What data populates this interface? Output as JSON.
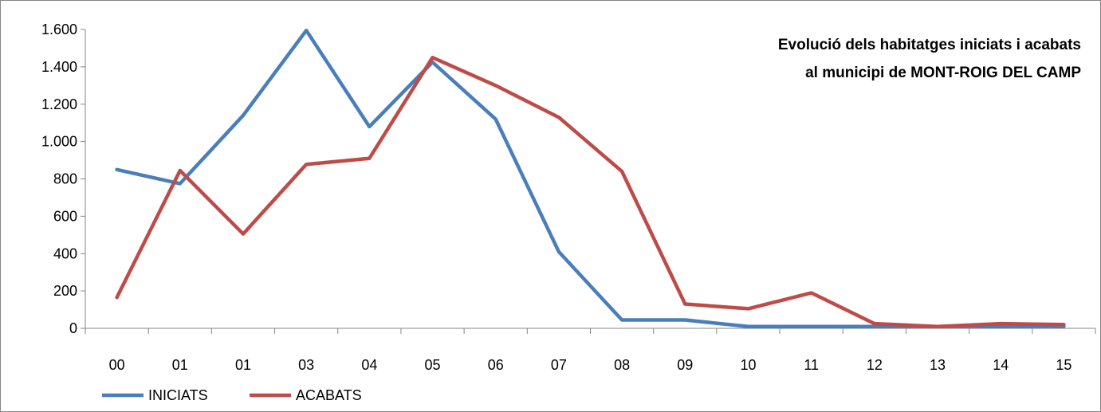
{
  "chart_data": {
    "type": "line",
    "title_lines": [
      "Evolució dels habitatges iniciats i acabats",
      "al municipi de MONT-ROIG DEL CAMP"
    ],
    "xlabel": "",
    "ylabel": "",
    "categories": [
      "00",
      "01",
      "01",
      "03",
      "04",
      "05",
      "06",
      "07",
      "08",
      "09",
      "10",
      "11",
      "12",
      "13",
      "14",
      "15"
    ],
    "ylim": [
      0,
      1600
    ],
    "yticks": [
      0,
      200,
      400,
      600,
      800,
      1000,
      1200,
      1400,
      1600
    ],
    "ytick_labels": [
      "0",
      "200",
      "400",
      "600",
      "800",
      "1.000",
      "1.200",
      "1.400",
      "1.600"
    ],
    "grid": false,
    "legend_position": "bottom-left",
    "series": [
      {
        "name": "INICIATS",
        "color": "#4a7ebb",
        "values": [
          850,
          775,
          1140,
          1595,
          1080,
          1425,
          1120,
          410,
          45,
          45,
          10,
          10,
          10,
          10,
          10,
          10
        ]
      },
      {
        "name": "ACABATS",
        "color": "#be4b48",
        "values": [
          165,
          845,
          505,
          878,
          910,
          1450,
          1300,
          1130,
          840,
          130,
          105,
          190,
          25,
          10,
          25,
          20
        ]
      }
    ]
  }
}
